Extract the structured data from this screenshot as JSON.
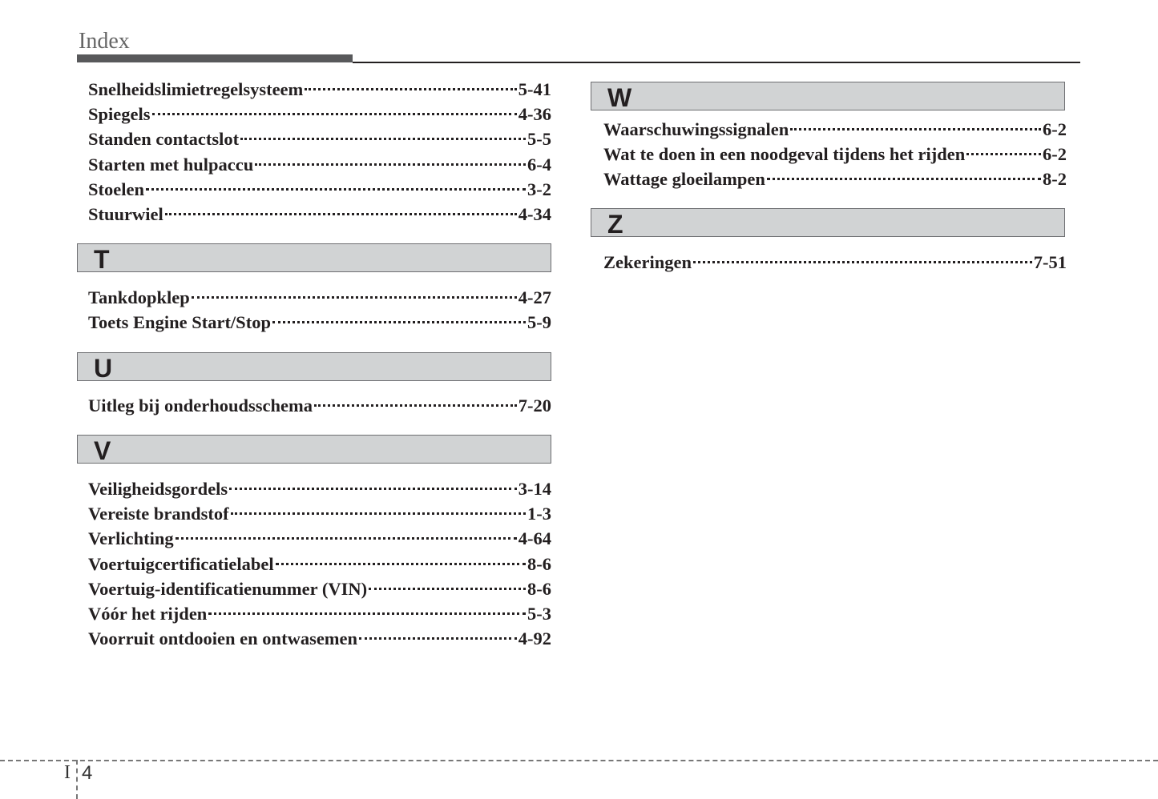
{
  "header": {
    "title": "Index"
  },
  "left": {
    "S": [
      {
        "term": "Snelheidslimietregelsysteem",
        "page": "5-41"
      },
      {
        "term": "Spiegels",
        "page": "4-36"
      },
      {
        "term": "Standen contactslot",
        "page": "5-5"
      },
      {
        "term": "Starten met hulpaccu",
        "page": "6-4"
      },
      {
        "term": "Stoelen",
        "page": "3-2"
      },
      {
        "term": "Stuurwiel",
        "page": "4-34"
      }
    ],
    "T": {
      "letter": "T",
      "entries": [
        {
          "term": "Tankdopklep",
          "page": "4-27"
        },
        {
          "term": "Toets Engine Start/Stop",
          "page": "5-9"
        }
      ]
    },
    "U": {
      "letter": "U",
      "entries": [
        {
          "term": "Uitleg bij onderhoudsschema",
          "page": "7-20"
        }
      ]
    },
    "V": {
      "letter": "V",
      "entries": [
        {
          "term": "Veiligheidsgordels",
          "page": "3-14"
        },
        {
          "term": "Vereiste brandstof",
          "page": "1-3"
        },
        {
          "term": "Verlichting",
          "page": "4-64"
        },
        {
          "term": "Voertuigcertificatielabel",
          "page": "8-6"
        },
        {
          "term": "Voertuig-identificatienummer (VIN)",
          "page": "8-6"
        },
        {
          "term": "Vóór het rijden",
          "page": "5-3"
        },
        {
          "term": "Voorruit ontdooien en ontwasemen",
          "page": "4-92"
        }
      ]
    }
  },
  "right": {
    "W": {
      "letter": "W",
      "entries": [
        {
          "term": "Waarschuwingssignalen",
          "page": "6-2"
        },
        {
          "term": "Wat te doen in een noodgeval tijdens het rijden",
          "page": "6-2"
        },
        {
          "term": "Wattage gloeilampen",
          "page": "8-2"
        }
      ]
    },
    "Z": {
      "letter": "Z",
      "entries": [
        {
          "term": "Zekeringen",
          "page": "7-51"
        }
      ]
    }
  },
  "footer": {
    "section": "I",
    "page": "4"
  }
}
